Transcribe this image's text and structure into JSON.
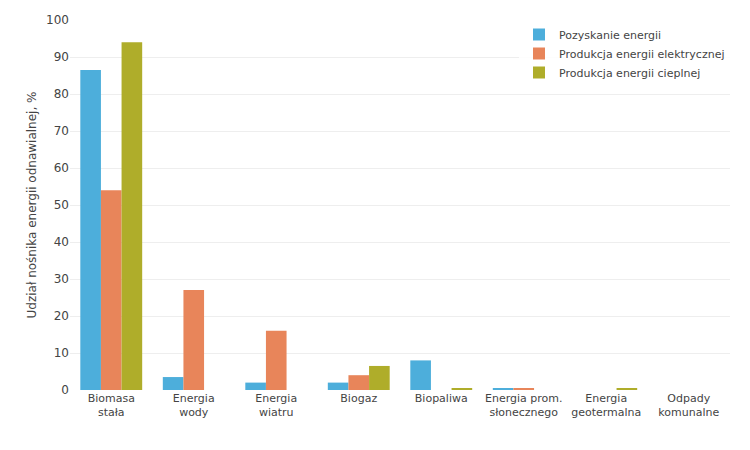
{
  "chart_data": {
    "type": "bar",
    "categories": [
      "Biomasa\nstała",
      "Energia\nwody",
      "Energia\nwiatru",
      "Biogaz",
      "Biopaliwa",
      "Energia prom.\nsłonecznego",
      "Energia\ngeotermalna",
      "Odpady\nkomunalne"
    ],
    "series": [
      {
        "name": "Pozyskanie energii",
        "color": "#4DAEDB",
        "values": [
          86.5,
          3.5,
          2.0,
          2.0,
          8.0,
          0.5,
          0.0,
          0.0
        ]
      },
      {
        "name": "Produkcja energii elektrycznej",
        "color": "#E8855A",
        "values": [
          54.0,
          27.0,
          16.0,
          4.0,
          0.0,
          0.5,
          0.0,
          0.0
        ]
      },
      {
        "name": "Produkcja energii cieplnej",
        "color": "#AFAD2A",
        "values": [
          94.0,
          0.0,
          0.0,
          6.5,
          0.5,
          0.0,
          0.5,
          0.0
        ]
      }
    ],
    "ylabel": "Udział nośnika energii odnawialnej, %",
    "ylim": [
      0,
      100
    ],
    "yticks": [
      0,
      10,
      20,
      30,
      40,
      50,
      60,
      70,
      80,
      90,
      100
    ],
    "grid": true,
    "legend": "upper right"
  }
}
